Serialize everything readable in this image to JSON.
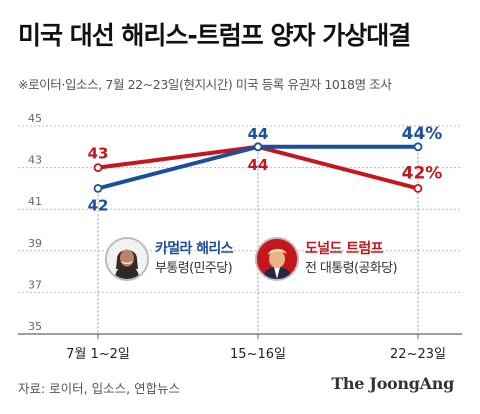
{
  "header": {
    "title": "미국 대선 해리스-트럼프 양자 가상대결",
    "subtitle": "※로이터·입소스, 7월 22~23일(현지시간) 미국 등록 유권자 1018명 조사"
  },
  "footer": {
    "source": "자료: 로이터, 입소스, 연합뉴스",
    "brand": "The JoongAng"
  },
  "candidates": {
    "harris": {
      "name": "카멀라 해리스",
      "party": "부통령(민주당)"
    },
    "trump": {
      "name": "도널드 트럼프",
      "party": "전 대통령(공화당)"
    }
  },
  "chart_data": {
    "type": "line",
    "categories": [
      "7월 1~2일",
      "15~16일",
      "22~23일"
    ],
    "ylim": [
      35,
      45
    ],
    "yticks": [
      35,
      37,
      39,
      41,
      43,
      45
    ],
    "grid": true,
    "xlabel": "",
    "ylabel": "",
    "series": [
      {
        "name": "카멀라 해리스",
        "color": "#1c4e9e",
        "values": [
          42,
          44,
          44
        ],
        "labels": [
          "42",
          "44",
          "44%"
        ]
      },
      {
        "name": "도널드 트럼프",
        "color": "#c4161c",
        "values": [
          43,
          44,
          42
        ],
        "labels": [
          "43",
          "44",
          "42%"
        ]
      }
    ]
  }
}
